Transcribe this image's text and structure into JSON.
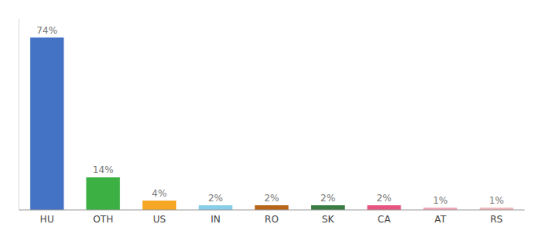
{
  "chart_data": {
    "type": "bar",
    "categories": [
      "HU",
      "OTH",
      "US",
      "IN",
      "RO",
      "SK",
      "CA",
      "AT",
      "RS"
    ],
    "values": [
      74,
      14,
      4,
      2,
      2,
      2,
      2,
      1,
      1
    ],
    "value_labels": [
      "74%",
      "14%",
      "4%",
      "2%",
      "2%",
      "2%",
      "2%",
      "1%",
      "1%"
    ],
    "colors": [
      "#4472c4",
      "#3cb043",
      "#f5a623",
      "#87ceeb",
      "#b8651a",
      "#3a7d44",
      "#e75480",
      "#f4a7b9",
      "#f4b8b8"
    ],
    "ylim": [
      0,
      82
    ],
    "data_labels": true,
    "tick_labels": "x",
    "grid": false
  }
}
